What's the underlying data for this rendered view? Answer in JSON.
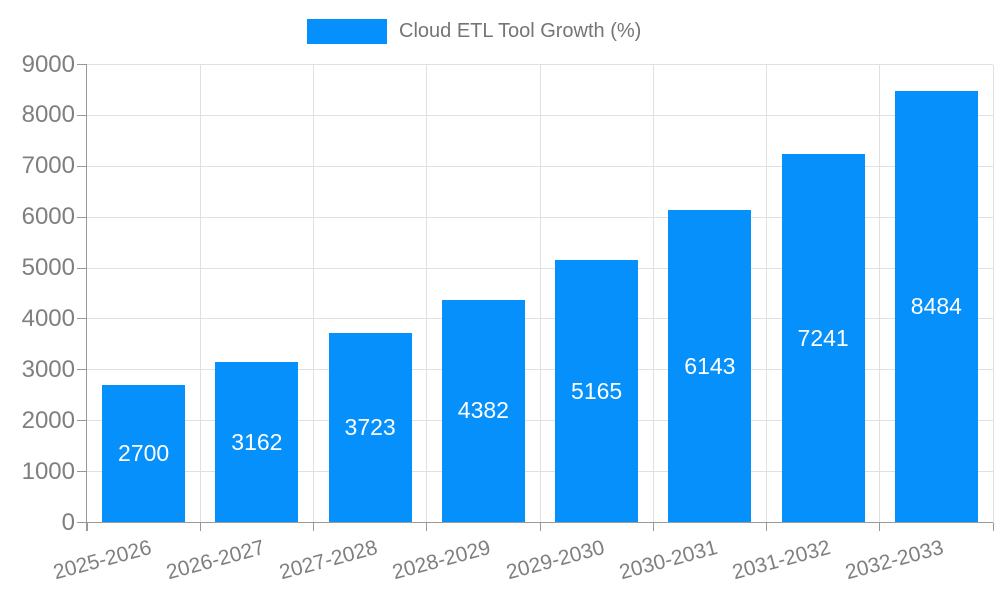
{
  "legend": {
    "label": "Cloud ETL Tool Growth (%)"
  },
  "chart_data": {
    "type": "bar",
    "title": "Cloud ETL Tool Growth (%)",
    "series_name": "Cloud ETL Tool Growth (%)",
    "categories": [
      "2025-2026",
      "2026-2027",
      "2027-2028",
      "2028-2029",
      "2029-2030",
      "2030-2031",
      "2031-2032",
      "2032-2033"
    ],
    "values": [
      2700,
      3162,
      3723,
      4382,
      5165,
      6143,
      7241,
      8484
    ],
    "xlabel": "",
    "ylabel": "",
    "ylim": [
      0,
      9000
    ],
    "ytick_step": 1000,
    "yticks": [
      0,
      1000,
      2000,
      3000,
      4000,
      5000,
      6000,
      7000,
      8000,
      9000
    ],
    "grid": "both",
    "legend_position": "top-center",
    "x_label_rotation_deg": -15,
    "bar_value_labels_inside": true,
    "colors": {
      "bar": "#0590FB",
      "bar_value_label": "#ffffff",
      "grid": "#e0e0e0",
      "axis": "#999999",
      "tick_label": "#7f7f7f",
      "legend_text": "#757575",
      "background": "#ffffff"
    }
  }
}
